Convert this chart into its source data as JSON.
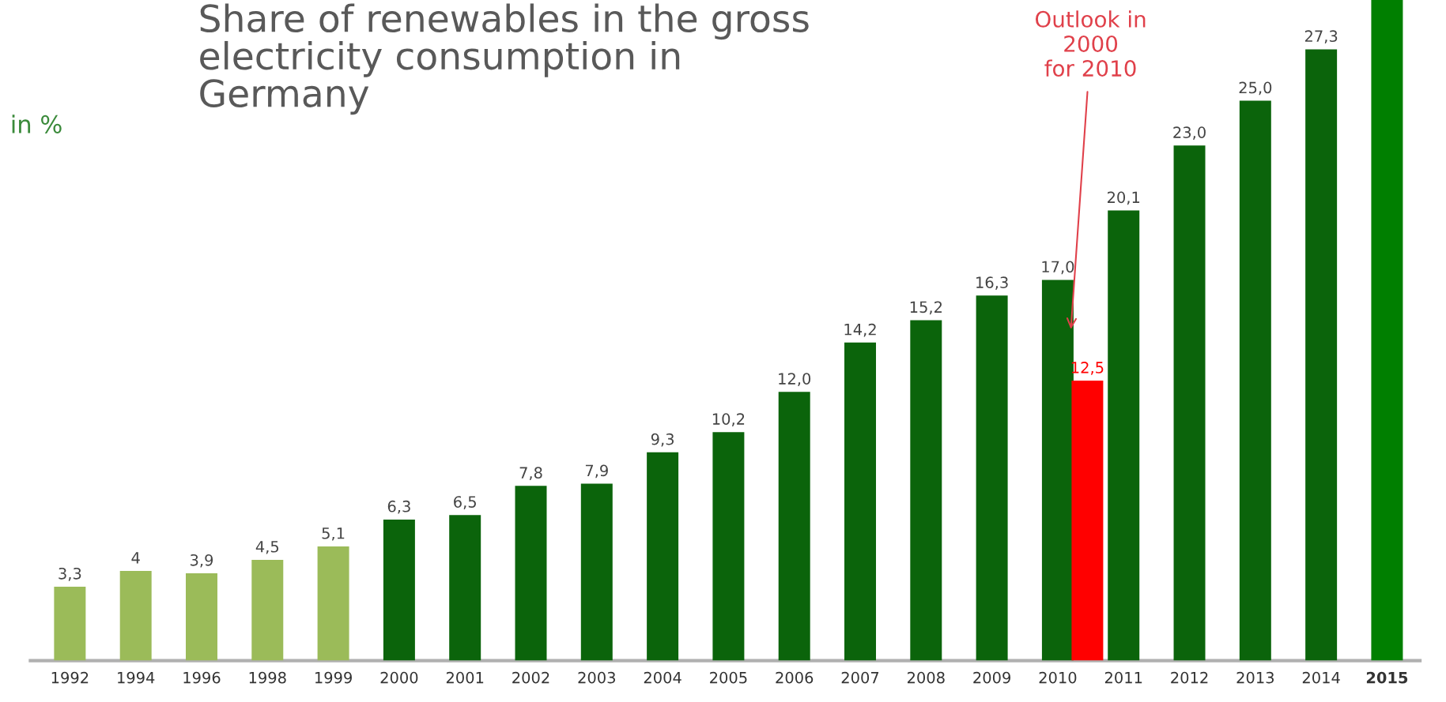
{
  "chart_data": {
    "type": "bar",
    "title": "Share of renewables in the gross\nelectricity consumption in\nGermany",
    "ylabel": "in %",
    "categories": [
      "1992",
      "1994",
      "1996",
      "1998",
      "1999",
      "2000",
      "2001",
      "2002",
      "2003",
      "2004",
      "2005",
      "2006",
      "2007",
      "2008",
      "2009",
      "2010",
      "2011",
      "2012",
      "2013",
      "2014",
      "2015"
    ],
    "ylim": [
      0,
      29.5
    ],
    "tick_labels": "x",
    "grid": false,
    "legend": false,
    "series": [
      {
        "values": [
          3.3,
          4,
          3.9,
          4.5,
          5.1,
          6.3,
          6.5,
          7.8,
          7.9,
          9.3,
          10.2,
          12.0,
          14.2,
          15.2,
          16.3,
          17.0,
          20.1,
          23.0,
          25.0,
          27.3,
          29.5
        ],
        "colors": [
          "#9bbb59",
          "#9bbb59",
          "#9bbb59",
          "#9bbb59",
          "#9bbb59",
          "#0b640b",
          "#0b640b",
          "#0b640b",
          "#0b640b",
          "#0b640b",
          "#0b640b",
          "#0b640b",
          "#0b640b",
          "#0b640b",
          "#0b640b",
          "#0b640b",
          "#0b640b",
          "#0b640b",
          "#0b640b",
          "#0b640b",
          "#007f00"
        ],
        "value_labels": [
          "3,3",
          "4",
          "3,9",
          "4,5",
          "5,1",
          "6,3",
          "6,5",
          "7,8",
          "7,9",
          "9,3",
          "10,2",
          "12,0",
          "14,2",
          "15,2",
          "16,3",
          "17,0",
          "20,1",
          "23,0",
          "25,0",
          "27,3",
          null
        ]
      },
      {
        "color": "#ff0000",
        "values": [
          null,
          null,
          null,
          null,
          null,
          null,
          null,
          null,
          null,
          null,
          null,
          null,
          null,
          null,
          null,
          12.5,
          null,
          null,
          null,
          null,
          null
        ],
        "value_labels": [
          null,
          null,
          null,
          null,
          null,
          null,
          null,
          null,
          null,
          null,
          null,
          null,
          null,
          null,
          null,
          "12,5",
          null,
          null,
          null,
          null,
          null
        ]
      }
    ],
    "annotations": [
      "Outlook in\n2000\nfor 2010"
    ]
  }
}
